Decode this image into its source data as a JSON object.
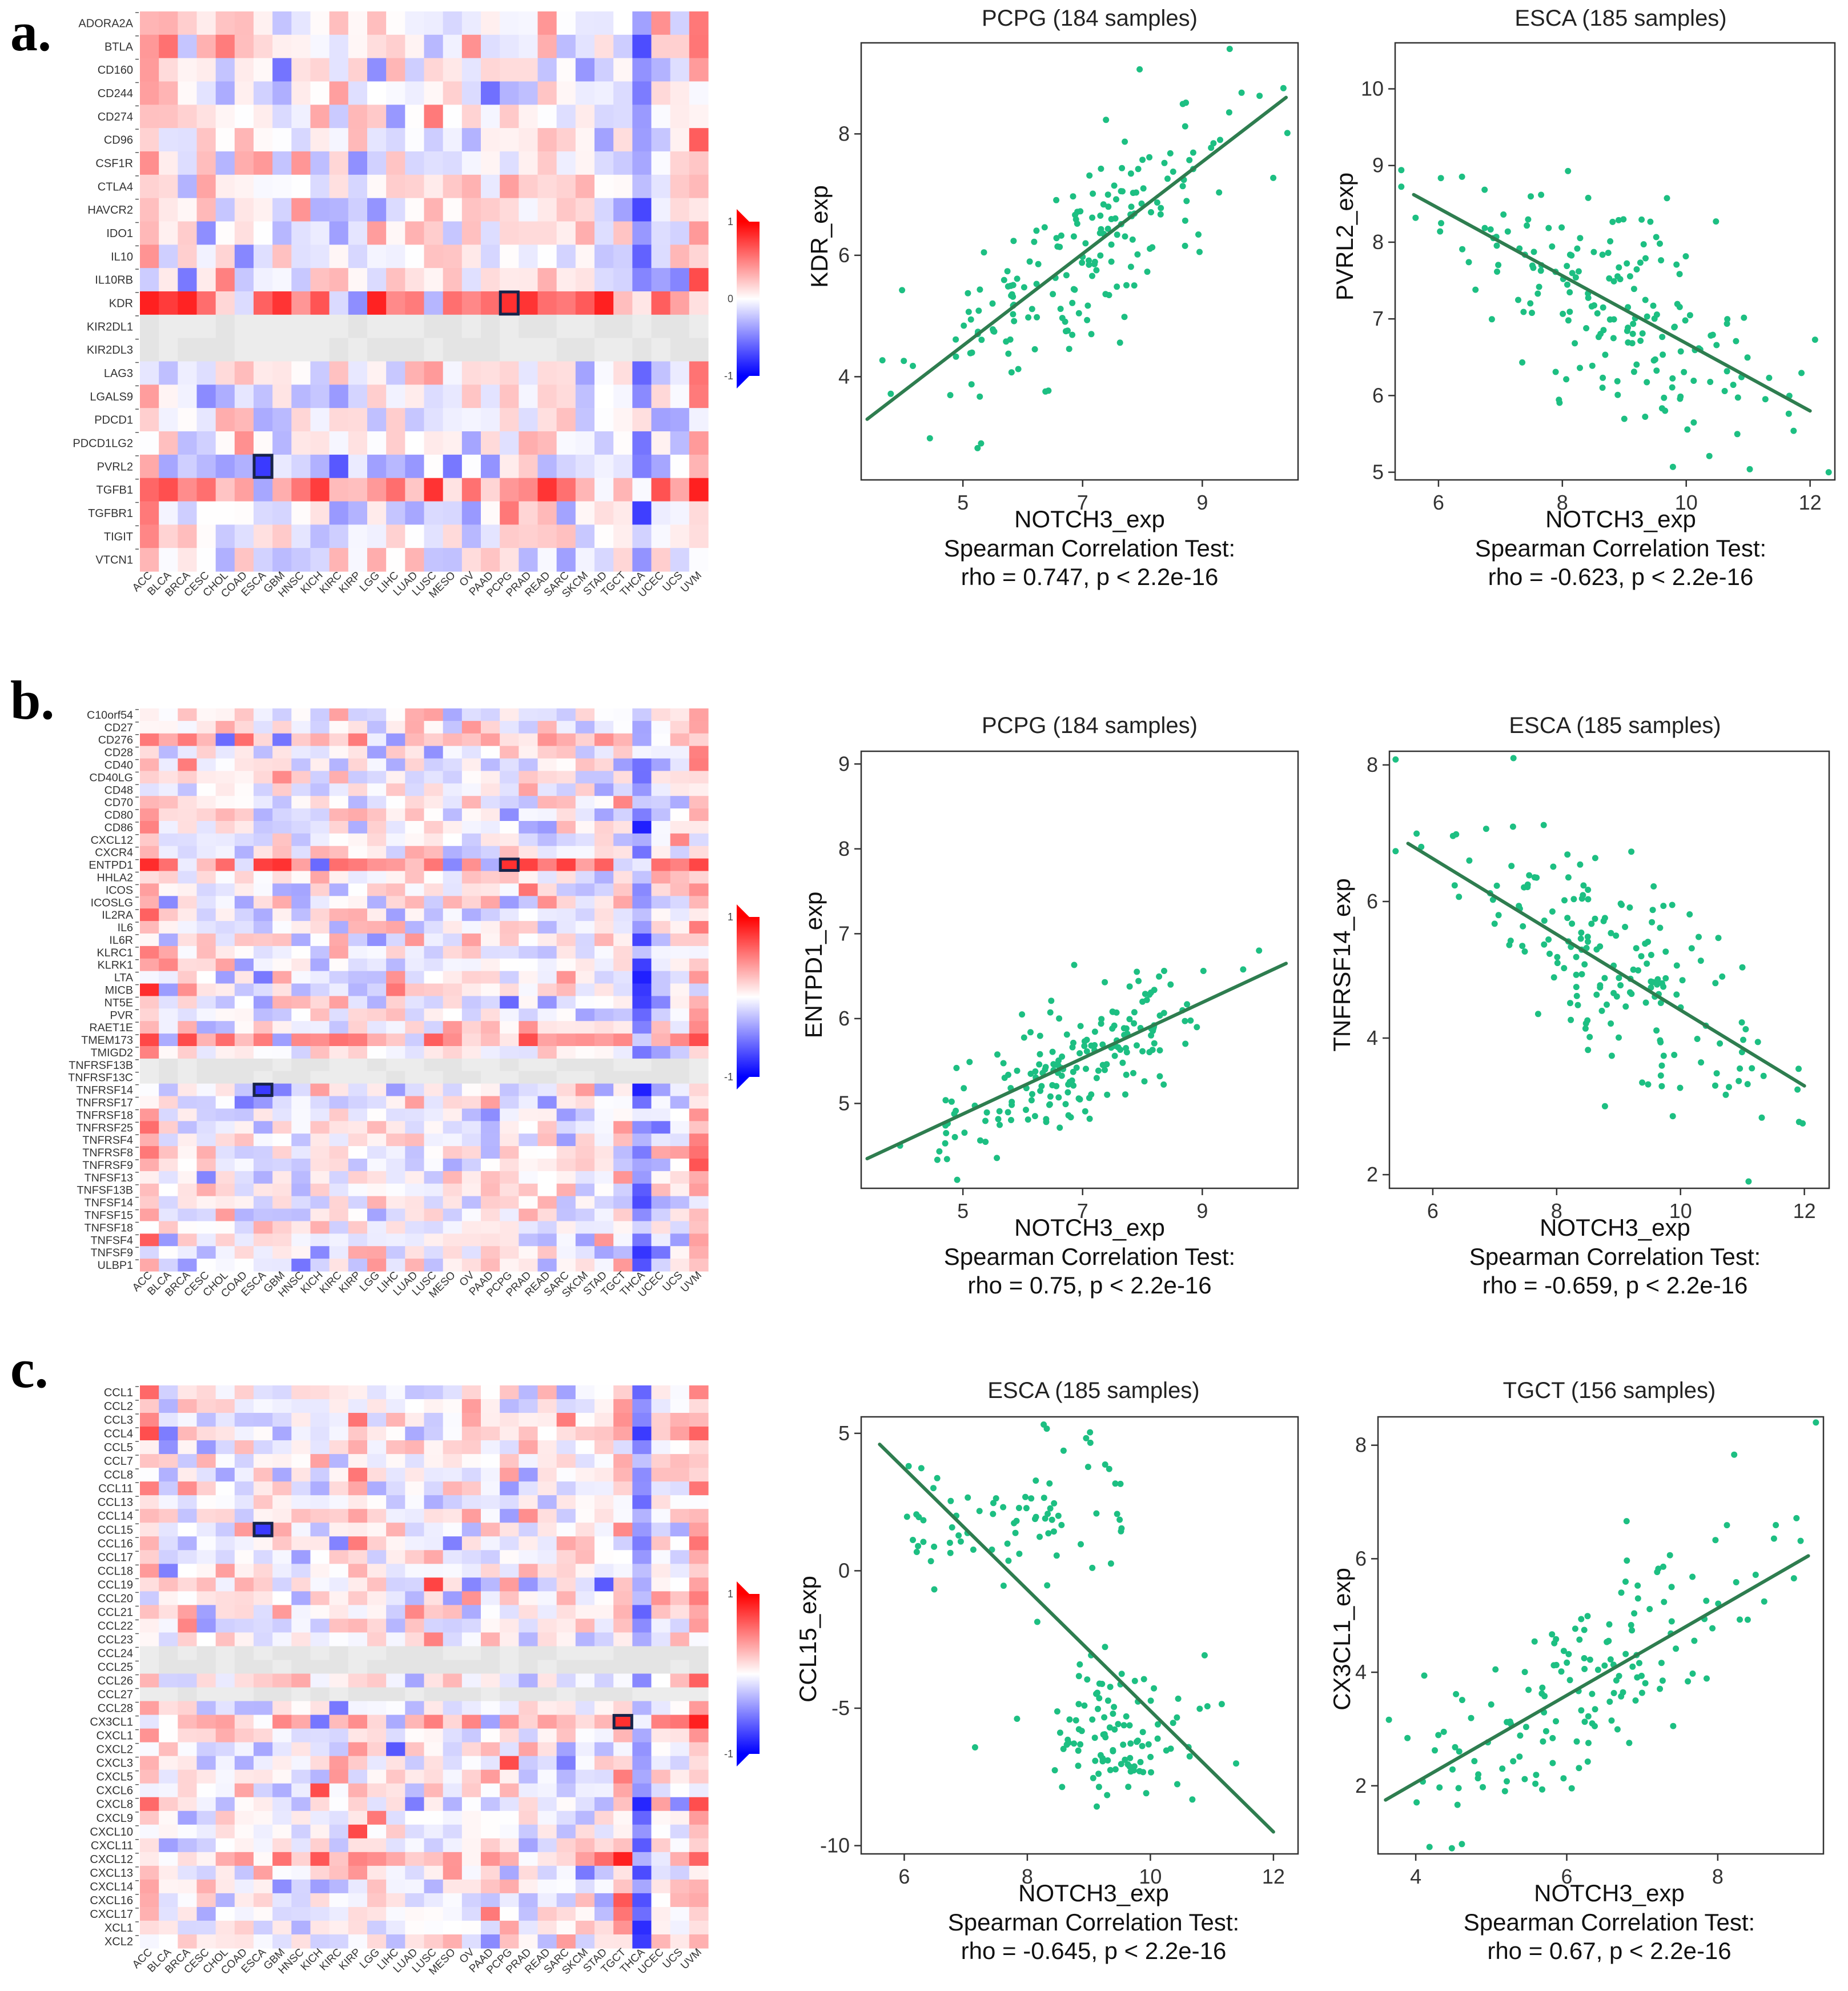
{
  "panel_labels": [
    "a.",
    "b.",
    "c."
  ],
  "common": {
    "cancers": [
      "ACC",
      "BLCA",
      "BRCA",
      "CESC",
      "CHOL",
      "COAD",
      "ESCA",
      "GBM",
      "HNSC",
      "KICH",
      "KIRC",
      "KIRP",
      "LGG",
      "LIHC",
      "LUAD",
      "LUSC",
      "MESO",
      "OV",
      "PAAD",
      "PCPG",
      "PRAD",
      "READ",
      "SARC",
      "SKCM",
      "STAD",
      "TGCT",
      "THCA",
      "UCEC",
      "UCS",
      "UVM"
    ],
    "legend_max": "1",
    "legend_mid": "0",
    "legend_min": "-1",
    "colors": {
      "scatter": "#1dbf82",
      "line": "#2e7d4f",
      "pos": "#ff2020",
      "neg": "#2020ff",
      "border": "#17234a"
    }
  },
  "chart_data": [
    {
      "type": "heatmap",
      "panel": "a",
      "rows": [
        "ADORA2A",
        "BTLA",
        "CD160",
        "CD244",
        "CD274",
        "CD96",
        "CSF1R",
        "CTLA4",
        "HAVCR2",
        "IDO1",
        "IL10",
        "IL10RB",
        "KDR",
        "KIR2DL1",
        "KIR2DL3",
        "LAG3",
        "LGALS9",
        "PDCD1",
        "PDCD1LG2",
        "PVRL2",
        "TGFB1",
        "TGFBR1",
        "TIGIT",
        "VTCN1"
      ],
      "highlights": [
        {
          "row": "KDR",
          "col": "PCPG"
        },
        {
          "row": "PVRL2",
          "col": "ESCA"
        }
      ],
      "strong_rows": {
        "KDR": 0.65,
        "TGFB1": 0.5,
        "PVRL2": -0.2
      },
      "gray_rows": [
        "KIR2DL1",
        "KIR2DL3"
      ],
      "col_bias": {
        "THCA": -0.6,
        "ACC": 0.35,
        "UVM": 0.35,
        "READ": 0.2,
        "PCPG": 0.1
      },
      "seed": 11,
      "legend_labels": [
        "1",
        "0",
        "-1"
      ]
    },
    {
      "type": "scatter",
      "title": "PCPG (184 samples)",
      "xlabel": "NOTCH3_exp",
      "ylabel": "KDR_exp",
      "stat_line1": "Spearman Correlation Test:",
      "stat_line2": "rho = 0.747, p < 2.2e-16",
      "n": 184,
      "rho": 0.747,
      "xlim": [
        3.3,
        10.6
      ],
      "ylim": [
        2.3,
        9.5
      ],
      "xticks": [
        5,
        7,
        9
      ],
      "yticks": [
        4,
        6,
        8
      ],
      "fit": {
        "x": [
          3.4,
          10.4
        ],
        "y": [
          3.3,
          8.6
        ]
      },
      "xcenter": 7.0,
      "xsd": 1.3,
      "noise": 0.75,
      "seed": 21
    },
    {
      "type": "scatter",
      "title": "ESCA (185 samples)",
      "xlabel": "NOTCH3_exp",
      "ylabel": "PVRL2_exp",
      "stat_line1": "Spearman Correlation Test:",
      "stat_line2": "rho = -0.623, p < 2.2e-16",
      "n": 185,
      "rho": -0.623,
      "xlim": [
        5.3,
        12.4
      ],
      "ylim": [
        4.9,
        10.6
      ],
      "xticks": [
        6,
        8,
        10,
        12
      ],
      "yticks": [
        5,
        6,
        7,
        8,
        9,
        10
      ],
      "fit": {
        "x": [
          5.6,
          12.0
        ],
        "y": [
          8.62,
          5.8
        ]
      },
      "xcenter": 8.9,
      "xsd": 1.3,
      "noise": 0.62,
      "seed": 31
    },
    {
      "type": "heatmap",
      "panel": "b",
      "rows": [
        "C10orf54",
        "CD27",
        "CD276",
        "CD28",
        "CD40",
        "CD40LG",
        "CD48",
        "CD70",
        "CD80",
        "CD86",
        "CXCL12",
        "CXCR4",
        "ENTPD1",
        "HHLA2",
        "ICOS",
        "ICOSLG",
        "IL2RA",
        "IL6",
        "IL6R",
        "KLRC1",
        "KLRK1",
        "LTA",
        "MICB",
        "NT5E",
        "PVR",
        "RAET1E",
        "TMEM173",
        "TMIGD2",
        "TNFRSF13B",
        "TNFRSF13C",
        "TNFRSF14",
        "TNFRSF17",
        "TNFRSF18",
        "TNFRSF25",
        "TNFRSF4",
        "TNFRSF8",
        "TNFRSF9",
        "TNFSF13",
        "TNFSF13B",
        "TNFSF14",
        "TNFSF15",
        "TNFSF18",
        "TNFSF4",
        "TNFSF9",
        "ULBP1"
      ],
      "highlights": [
        {
          "row": "ENTPD1",
          "col": "PCPG"
        },
        {
          "row": "TNFRSF14",
          "col": "ESCA"
        }
      ],
      "strong_rows": {
        "ENTPD1": 0.55,
        "TMEM173": 0.5,
        "CD276": 0.35,
        "TNFRSF14": -0.15
      },
      "gray_rows": [
        "TNFRSF13B",
        "TNFRSF13C"
      ],
      "col_bias": {
        "THCA": -0.6,
        "ACC": 0.3,
        "UVM": 0.3,
        "ESCA": -0.1
      },
      "seed": 12,
      "legend_labels": [
        "1",
        "-1"
      ]
    },
    {
      "type": "scatter",
      "title": "PCPG (184 samples)",
      "xlabel": "NOTCH3_exp",
      "ylabel": "ENTPD1_exp",
      "stat_line1": "Spearman Correlation Test:",
      "stat_line2": "rho = 0.75, p < 2.2e-16",
      "n": 184,
      "rho": 0.75,
      "xlim": [
        3.3,
        10.6
      ],
      "ylim": [
        4.0,
        9.15
      ],
      "xticks": [
        5,
        7,
        9
      ],
      "yticks": [
        5,
        6,
        7,
        8,
        9
      ],
      "fit": {
        "x": [
          3.4,
          10.4
        ],
        "y": [
          4.35,
          6.65
        ]
      },
      "xcenter": 6.8,
      "xsd": 1.2,
      "noise": 0.35,
      "seed": 41
    },
    {
      "type": "scatter",
      "title": "ESCA (185 samples)",
      "xlabel": "NOTCH3_exp",
      "ylabel": "TNFRSF14_exp",
      "stat_line1": "Spearman Correlation Test:",
      "stat_line2": "rho = -0.659, p < 2.2e-16",
      "n": 185,
      "rho": -0.659,
      "xlim": [
        5.3,
        12.4
      ],
      "ylim": [
        1.8,
        8.2
      ],
      "xticks": [
        6,
        8,
        10,
        12
      ],
      "yticks": [
        2,
        4,
        6,
        8
      ],
      "fit": {
        "x": [
          5.6,
          12.0
        ],
        "y": [
          6.85,
          3.3
        ]
      },
      "xcenter": 8.9,
      "xsd": 1.3,
      "noise": 0.75,
      "seed": 51
    },
    {
      "type": "heatmap",
      "panel": "c",
      "rows": [
        "CCL1",
        "CCL2",
        "CCL3",
        "CCL4",
        "CCL5",
        "CCL7",
        "CCL8",
        "CCL11",
        "CCL13",
        "CCL14",
        "CCL15",
        "CCL16",
        "CCL17",
        "CCL18",
        "CCL19",
        "CCL20",
        "CCL21",
        "CCL22",
        "CCL23",
        "CCL24",
        "CCL25",
        "CCL26",
        "CCL27",
        "CCL28",
        "CX3CL1",
        "CXCL1",
        "CXCL2",
        "CXCL3",
        "CXCL5",
        "CXCL6",
        "CXCL8",
        "CXCL9",
        "CXCL10",
        "CXCL11",
        "CXCL12",
        "CXCL13",
        "CXCL14",
        "CXCL16",
        "CXCL17",
        "XCL1",
        "XCL2"
      ],
      "highlights": [
        {
          "row": "CCL15",
          "col": "ESCA"
        },
        {
          "row": "CX3CL1",
          "col": "TGCT"
        }
      ],
      "strong_rows": {
        "CX3CL1": 0.35,
        "CXCL12": 0.3
      },
      "gray_rows": [
        "CCL24",
        "CCL25",
        "CCL27"
      ],
      "col_bias": {
        "THCA": -0.55,
        "TGCT": 0.25,
        "ACC": 0.25,
        "UVM": 0.3,
        "KIRP": 0.2
      },
      "seed": 13,
      "legend_labels": [
        "1",
        "-1"
      ]
    },
    {
      "type": "scatter",
      "title": "ESCA (185 samples)",
      "xlabel": "NOTCH3_exp",
      "ylabel": "CCL15_exp",
      "stat_line1": "Spearman Correlation Test:",
      "stat_line2": "rho = -0.645, p < 2.2e-16",
      "n": 185,
      "rho": -0.645,
      "xlim": [
        5.3,
        12.4
      ],
      "ylim": [
        -10.3,
        5.6
      ],
      "xticks": [
        6,
        8,
        10,
        12
      ],
      "yticks": [
        -10,
        -5,
        0,
        5
      ],
      "fit": {
        "x": [
          5.6,
          12.0
        ],
        "y": [
          4.6,
          -9.5
        ]
      },
      "bimodal": true,
      "seed": 61
    },
    {
      "type": "scatter",
      "title": "TGCT (156 samples)",
      "xlabel": "NOTCH3_exp",
      "ylabel": "CX3CL1_exp",
      "stat_line1": "Spearman Correlation Test:",
      "stat_line2": "rho = 0.67, p < 2.2e-16",
      "n": 156,
      "rho": 0.67,
      "xlim": [
        3.5,
        9.4
      ],
      "ylim": [
        0.8,
        8.5
      ],
      "xticks": [
        4,
        6,
        8
      ],
      "yticks": [
        2,
        4,
        6,
        8
      ],
      "fit": {
        "x": [
          3.6,
          9.2
        ],
        "y": [
          1.75,
          6.05
        ]
      },
      "xcenter": 6.3,
      "xsd": 1.2,
      "noise": 0.85,
      "seed": 71
    }
  ]
}
